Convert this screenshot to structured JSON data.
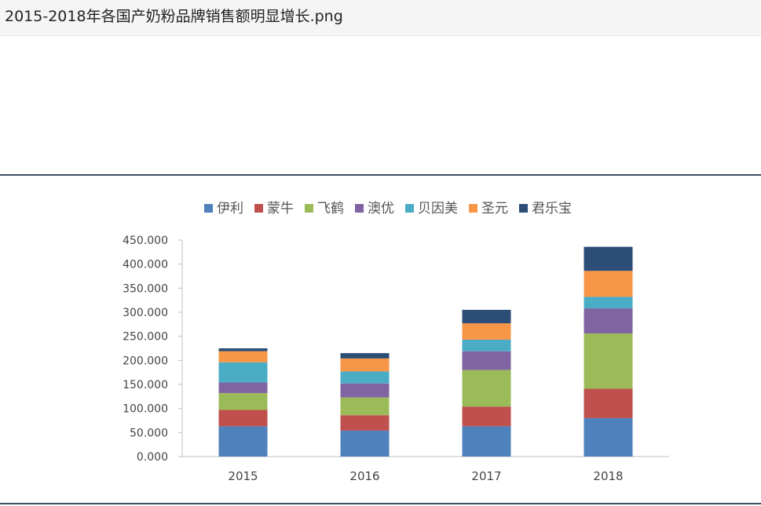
{
  "window": {
    "title": "2015-2018年各国产奶粉品牌销售额明显增长.png"
  },
  "chart_data": {
    "type": "bar",
    "stacked": true,
    "categories": [
      "2015",
      "2016",
      "2017",
      "2018"
    ],
    "series": [
      {
        "name": "伊利",
        "color": "#4f81bd",
        "values": [
          63,
          54,
          63,
          80
        ]
      },
      {
        "name": "蒙牛",
        "color": "#c0504d",
        "values": [
          34,
          32,
          41,
          61
        ]
      },
      {
        "name": "飞鹤",
        "color": "#9bbb59",
        "values": [
          35,
          37,
          76,
          115
        ]
      },
      {
        "name": "澳优",
        "color": "#8064a2",
        "values": [
          22,
          29,
          39,
          52
        ]
      },
      {
        "name": "贝因美",
        "color": "#4bacc6",
        "values": [
          42,
          25,
          24,
          24
        ]
      },
      {
        "name": "圣元",
        "color": "#f79646",
        "values": [
          23,
          27,
          34,
          54
        ]
      },
      {
        "name": "君乐宝",
        "color": "#2c4d75",
        "values": [
          6,
          11,
          28,
          50
        ]
      }
    ],
    "ylim": [
      0,
      450
    ],
    "yticks": [
      "0.000",
      "50.000",
      "100.000",
      "150.000",
      "200.000",
      "250.000",
      "300.000",
      "350.000",
      "400.000",
      "450.000"
    ],
    "legend_position": "top",
    "grid": false
  }
}
